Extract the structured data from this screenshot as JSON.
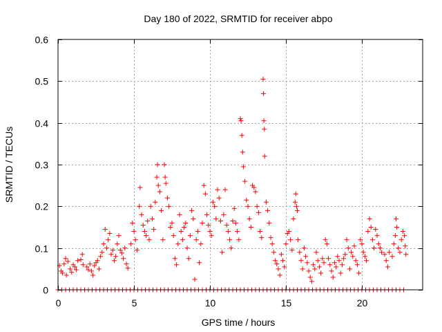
{
  "chart_data": {
    "type": "scatter",
    "title": "Day 180 of 2022, SRMTID for receiver abpo",
    "xlabel": "GPS time / hours",
    "ylabel": "SRMTID / TECUs",
    "xlim": [
      0,
      24
    ],
    "ylim": [
      0,
      0.6
    ],
    "xticks": [
      0,
      5,
      10,
      15,
      20
    ],
    "xtick_labels": [
      "0",
      "5",
      "10",
      "15",
      "20"
    ],
    "yticks": [
      0,
      0.1,
      0.2,
      0.3,
      0.4,
      0.5,
      0.6
    ],
    "ytick_labels": [
      "0",
      "0.1",
      "0.2",
      "0.3",
      "0.4",
      "0.5",
      "0.6"
    ],
    "grid": true,
    "series": [
      {
        "name": "SRMTID",
        "color": "#ff0000",
        "marker": "plus",
        "points": [
          [
            0.1,
            0.058
          ],
          [
            0.2,
            0.045
          ],
          [
            0.3,
            0.04
          ],
          [
            0.4,
            0.062
          ],
          [
            0.5,
            0.075
          ],
          [
            0.55,
            0.035
          ],
          [
            0.65,
            0.068
          ],
          [
            0.8,
            0.05
          ],
          [
            0.9,
            0.042
          ],
          [
            1.0,
            0.06
          ],
          [
            1.1,
            0.055
          ],
          [
            1.2,
            0.048
          ],
          [
            1.3,
            0.07
          ],
          [
            1.5,
            0.072
          ],
          [
            1.6,
            0.085
          ],
          [
            1.65,
            0.06
          ],
          [
            1.9,
            0.055
          ],
          [
            2.0,
            0.048
          ],
          [
            2.1,
            0.062
          ],
          [
            2.2,
            0.045
          ],
          [
            2.3,
            0.035
          ],
          [
            2.4,
            0.058
          ],
          [
            2.5,
            0.065
          ],
          [
            2.6,
            0.07
          ],
          [
            2.7,
            0.05
          ],
          [
            2.8,
            0.08
          ],
          [
            2.9,
            0.09
          ],
          [
            3.0,
            0.11
          ],
          [
            3.1,
            0.145
          ],
          [
            3.2,
            0.1
          ],
          [
            3.3,
            0.12
          ],
          [
            3.4,
            0.135
          ],
          [
            3.5,
            0.085
          ],
          [
            3.6,
            0.095
          ],
          [
            3.7,
            0.07
          ],
          [
            3.8,
            0.08
          ],
          [
            3.9,
            0.11
          ],
          [
            4.0,
            0.13
          ],
          [
            4.1,
            0.095
          ],
          [
            4.2,
            0.088
          ],
          [
            4.3,
            0.075
          ],
          [
            4.4,
            0.1
          ],
          [
            4.5,
            0.062
          ],
          [
            4.6,
            0.052
          ],
          [
            4.8,
            0.11
          ],
          [
            4.9,
            0.16
          ],
          [
            5.0,
            0.14
          ],
          [
            5.1,
            0.12
          ],
          [
            5.2,
            0.095
          ],
          [
            5.35,
            0.2
          ],
          [
            5.4,
            0.245
          ],
          [
            5.5,
            0.18
          ],
          [
            5.6,
            0.155
          ],
          [
            5.7,
            0.14
          ],
          [
            5.8,
            0.13
          ],
          [
            5.9,
            0.165
          ],
          [
            6.0,
            0.12
          ],
          [
            6.1,
            0.2
          ],
          [
            6.2,
            0.17
          ],
          [
            6.3,
            0.145
          ],
          [
            6.4,
            0.21
          ],
          [
            6.5,
            0.27
          ],
          [
            6.55,
            0.3
          ],
          [
            6.6,
            0.25
          ],
          [
            6.7,
            0.235
          ],
          [
            6.8,
            0.19
          ],
          [
            6.9,
            0.12
          ],
          [
            7.0,
            0.3
          ],
          [
            7.05,
            0.27
          ],
          [
            7.1,
            0.255
          ],
          [
            7.2,
            0.22
          ],
          [
            7.3,
            0.2
          ],
          [
            7.4,
            0.15
          ],
          [
            7.5,
            0.16
          ],
          [
            7.6,
            0.13
          ],
          [
            7.7,
            0.075
          ],
          [
            7.8,
            0.06
          ],
          [
            7.9,
            0.11
          ],
          [
            8.0,
            0.18
          ],
          [
            8.1,
            0.14
          ],
          [
            8.2,
            0.12
          ],
          [
            8.3,
            0.15
          ],
          [
            8.4,
            0.16
          ],
          [
            8.5,
            0.1
          ],
          [
            8.6,
            0.075
          ],
          [
            8.7,
            0.13
          ],
          [
            8.8,
            0.19
          ],
          [
            8.9,
            0.17
          ],
          [
            9.0,
            0.025
          ],
          [
            9.1,
            0.12
          ],
          [
            9.2,
            0.14
          ],
          [
            9.3,
            0.065
          ],
          [
            9.4,
            0.11
          ],
          [
            9.5,
            0.16
          ],
          [
            9.6,
            0.25
          ],
          [
            9.7,
            0.23
          ],
          [
            9.8,
            0.18
          ],
          [
            9.9,
            0.155
          ],
          [
            10.0,
            0.14
          ],
          [
            10.1,
            0.13
          ],
          [
            10.2,
            0.21
          ],
          [
            10.3,
            0.2
          ],
          [
            10.4,
            0.17
          ],
          [
            10.5,
            0.24
          ],
          [
            10.6,
            0.22
          ],
          [
            10.7,
            0.165
          ],
          [
            10.8,
            0.09
          ],
          [
            10.9,
            0.18
          ],
          [
            11.0,
            0.24
          ],
          [
            11.1,
            0.155
          ],
          [
            11.2,
            0.14
          ],
          [
            11.3,
            0.12
          ],
          [
            11.4,
            0.1
          ],
          [
            11.5,
            0.165
          ],
          [
            11.6,
            0.195
          ],
          [
            11.7,
            0.16
          ],
          [
            11.8,
            0.14
          ],
          [
            11.9,
            0.12
          ],
          [
            12.0,
            0.41
          ],
          [
            12.05,
            0.405
          ],
          [
            12.1,
            0.37
          ],
          [
            12.15,
            0.33
          ],
          [
            12.2,
            0.295
          ],
          [
            12.3,
            0.26
          ],
          [
            12.4,
            0.215
          ],
          [
            12.5,
            0.2
          ],
          [
            12.6,
            0.17
          ],
          [
            12.7,
            0.15
          ],
          [
            12.8,
            0.25
          ],
          [
            12.9,
            0.245
          ],
          [
            13.0,
            0.235
          ],
          [
            13.1,
            0.2
          ],
          [
            13.2,
            0.185
          ],
          [
            13.3,
            0.14
          ],
          [
            13.4,
            0.125
          ],
          [
            13.5,
            0.505
          ],
          [
            13.52,
            0.47
          ],
          [
            13.55,
            0.405
          ],
          [
            13.58,
            0.385
          ],
          [
            13.6,
            0.32
          ],
          [
            13.7,
            0.21
          ],
          [
            13.8,
            0.19
          ],
          [
            13.9,
            0.16
          ],
          [
            14.0,
            0.125
          ],
          [
            14.1,
            0.11
          ],
          [
            14.2,
            0.09
          ],
          [
            14.3,
            0.07
          ],
          [
            14.4,
            0.062
          ],
          [
            14.5,
            0.05
          ],
          [
            14.6,
            0.035
          ],
          [
            14.7,
            0.085
          ],
          [
            14.8,
            0.07
          ],
          [
            14.9,
            0.055
          ],
          [
            15.0,
            0.11
          ],
          [
            15.1,
            0.135
          ],
          [
            15.2,
            0.14
          ],
          [
            15.3,
            0.12
          ],
          [
            15.4,
            0.095
          ],
          [
            15.5,
            0.17
          ],
          [
            15.6,
            0.21
          ],
          [
            15.65,
            0.23
          ],
          [
            15.7,
            0.2
          ],
          [
            15.75,
            0.19
          ],
          [
            15.8,
            0.12
          ],
          [
            15.9,
            0.09
          ],
          [
            16.0,
            0.07
          ],
          [
            16.1,
            0.05
          ],
          [
            16.2,
            0.1
          ],
          [
            16.3,
            0.08
          ],
          [
            16.4,
            0.065
          ],
          [
            16.5,
            0.045
          ],
          [
            16.6,
            0.03
          ],
          [
            16.7,
            0.02
          ],
          [
            16.8,
            0.06
          ],
          [
            16.9,
            0.05
          ],
          [
            17.0,
            0.09
          ],
          [
            17.1,
            0.07
          ],
          [
            17.2,
            0.055
          ],
          [
            17.3,
            0.04
          ],
          [
            17.4,
            0.075
          ],
          [
            17.5,
            0.065
          ],
          [
            17.6,
            0.12
          ],
          [
            17.7,
            0.11
          ],
          [
            17.8,
            0.075
          ],
          [
            17.9,
            0.06
          ],
          [
            18.0,
            0.045
          ],
          [
            18.1,
            0.03
          ],
          [
            18.2,
            0.065
          ],
          [
            18.3,
            0.055
          ],
          [
            18.4,
            0.08
          ],
          [
            18.5,
            0.07
          ],
          [
            18.6,
            0.04
          ],
          [
            18.7,
            0.06
          ],
          [
            18.8,
            0.075
          ],
          [
            18.9,
            0.085
          ],
          [
            19.0,
            0.12
          ],
          [
            19.1,
            0.1
          ],
          [
            19.2,
            0.05
          ],
          [
            19.3,
            0.09
          ],
          [
            19.4,
            0.08
          ],
          [
            19.5,
            0.105
          ],
          [
            19.6,
            0.07
          ],
          [
            19.7,
            0.06
          ],
          [
            19.8,
            0.04
          ],
          [
            19.9,
            0.12
          ],
          [
            20.0,
            0.11
          ],
          [
            20.1,
            0.09
          ],
          [
            20.2,
            0.08
          ],
          [
            20.3,
            0.07
          ],
          [
            20.4,
            0.14
          ],
          [
            20.5,
            0.17
          ],
          [
            20.6,
            0.15
          ],
          [
            20.7,
            0.12
          ],
          [
            20.8,
            0.1
          ],
          [
            20.9,
            0.145
          ],
          [
            21.0,
            0.13
          ],
          [
            21.1,
            0.11
          ],
          [
            21.2,
            0.1
          ],
          [
            21.3,
            0.09
          ],
          [
            21.5,
            0.085
          ],
          [
            21.6,
            0.07
          ],
          [
            21.7,
            0.055
          ],
          [
            21.8,
            0.09
          ],
          [
            22.0,
            0.08
          ],
          [
            22.1,
            0.11
          ],
          [
            22.2,
            0.13
          ],
          [
            22.25,
            0.17
          ],
          [
            22.3,
            0.15
          ],
          [
            22.4,
            0.1
          ],
          [
            22.5,
            0.09
          ],
          [
            22.6,
            0.12
          ],
          [
            22.7,
            0.14
          ],
          [
            22.8,
            0.13
          ],
          [
            22.85,
            0.105
          ],
          [
            22.9,
            0.085
          ]
        ],
        "zero_points_x": [
          0.0,
          0.25,
          0.5,
          0.75,
          1.0,
          1.25,
          1.5,
          1.75,
          2.0,
          2.25,
          2.5,
          2.75,
          3.0,
          3.25,
          3.5,
          3.75,
          4.0,
          4.25,
          4.5,
          4.75,
          5.0,
          5.25,
          5.5,
          5.75,
          6.0,
          6.25,
          6.5,
          6.75,
          7.0,
          7.25,
          7.5,
          7.75,
          8.0,
          8.25,
          8.5,
          8.75,
          9.0,
          9.25,
          9.5,
          9.75,
          10.0,
          10.25,
          10.5,
          10.75,
          11.0,
          11.25,
          11.5,
          11.75,
          12.0,
          12.25,
          12.5,
          12.75,
          13.0,
          13.25,
          13.5,
          13.75,
          14.0,
          14.25,
          14.5,
          14.75,
          15.0,
          15.25,
          15.5,
          15.75,
          16.0,
          16.25,
          16.5,
          16.75,
          17.0,
          17.25,
          17.5,
          17.75,
          18.0,
          18.25,
          18.5,
          18.75,
          19.0,
          19.25,
          19.5,
          19.75,
          20.0,
          20.25,
          20.5,
          20.75,
          21.0,
          21.25,
          21.5,
          21.75,
          22.0,
          22.25,
          22.5,
          22.75
        ]
      }
    ]
  }
}
